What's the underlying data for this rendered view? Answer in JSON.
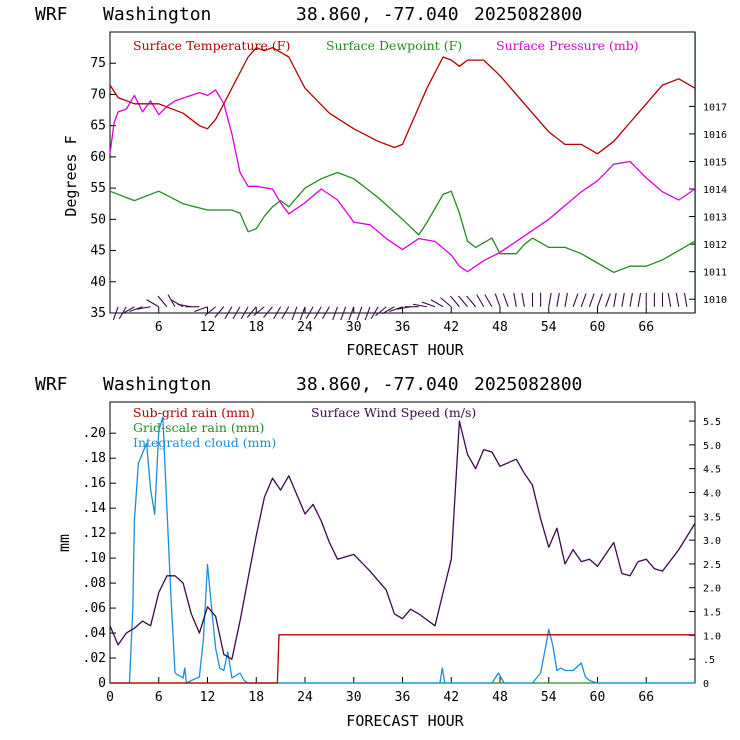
{
  "colors": {
    "temperature": "#b30000",
    "dewpoint": "#228b22",
    "pressure": "#dd00dd",
    "rain_subgrid": "#b30000",
    "rain_gridscale": "#228b22",
    "cloud": "#1a8fd8",
    "wind": "#3a0a4a",
    "barb": "#3a0a4a"
  },
  "header": {
    "model": "WRF",
    "location": "Washington",
    "coords": "38.860, -77.040",
    "run": "2025082800"
  },
  "chart_data": [
    {
      "type": "line",
      "xlabel": "FORECAST HOUR",
      "ylabel": "Degrees F",
      "xlim": [
        0,
        72
      ],
      "ylim": [
        35,
        80
      ],
      "y2lim": [
        1009.5,
        1019.7
      ],
      "xticks": [
        "6",
        "12",
        "18",
        "24",
        "30",
        "36",
        "42",
        "48",
        "54",
        "60",
        "66"
      ],
      "yticks": [
        "35",
        "40",
        "45",
        "50",
        "55",
        "60",
        "65",
        "70",
        "75"
      ],
      "y2ticks": [
        "1010",
        "1011",
        "1012",
        "1013",
        "1014",
        "1015",
        "1016",
        "1017"
      ],
      "legend_placement": "top",
      "series": [
        {
          "name": "Surface Temperature (F)",
          "axis": "left",
          "x": [
            0,
            1,
            3,
            6,
            9,
            11,
            12,
            13,
            15,
            17,
            18,
            19,
            20,
            22,
            24,
            27,
            30,
            33,
            35,
            36,
            37,
            39,
            41,
            42,
            43,
            44,
            46,
            48,
            50,
            52,
            54,
            56,
            58,
            60,
            62,
            64,
            66,
            68,
            70,
            72
          ],
          "y": [
            71.5,
            69.5,
            68.5,
            68.5,
            67,
            65,
            64.5,
            66,
            71,
            76,
            77.5,
            77,
            77.5,
            76,
            71,
            67,
            64.5,
            62.5,
            61.5,
            62,
            65,
            71,
            76,
            75.5,
            74.5,
            75.5,
            75.5,
            73,
            70,
            67,
            64,
            62,
            62,
            60.5,
            62.5,
            65.5,
            68.5,
            71.5,
            72.5,
            71
          ]
        },
        {
          "name": "Surface Dewpoint (F)",
          "axis": "left",
          "x": [
            0,
            3,
            6,
            9,
            12,
            15,
            16,
            17,
            18,
            19,
            20,
            21,
            22,
            24,
            26,
            28,
            30,
            33,
            36,
            38,
            39,
            41,
            42,
            43,
            44,
            45,
            47,
            48,
            50,
            51,
            52,
            54,
            56,
            58,
            60,
            62,
            64,
            66,
            68,
            72
          ],
          "y": [
            54.5,
            53,
            54.5,
            52.5,
            51.5,
            51.5,
            51,
            48,
            48.5,
            50.5,
            52,
            53,
            52,
            55,
            56.5,
            57.5,
            56.5,
            53.5,
            50,
            47.5,
            49.5,
            54,
            54.5,
            51,
            46.5,
            45.5,
            47,
            44.5,
            44.5,
            46,
            47,
            45.5,
            45.5,
            44.5,
            43,
            41.5,
            42.5,
            42.5,
            43.5,
            46.5
          ]
        },
        {
          "name": "Surface Pressure (mb)",
          "axis": "right",
          "x": [
            0,
            0.5,
            1,
            2,
            3,
            4,
            5,
            6,
            7,
            8,
            9,
            10,
            11,
            12,
            13,
            14,
            15,
            16,
            17,
            18,
            20,
            21,
            22,
            24,
            26,
            28,
            30,
            32,
            34,
            36,
            38,
            40,
            42,
            43,
            44,
            46,
            48,
            50,
            52,
            54,
            56,
            58,
            60,
            62,
            64,
            66,
            68,
            70,
            72
          ],
          "y": [
            1015.3,
            1016.4,
            1016.8,
            1016.9,
            1017.4,
            1016.8,
            1017.2,
            1016.7,
            1017.0,
            1017.2,
            1017.3,
            1017.4,
            1017.5,
            1017.4,
            1017.6,
            1017.1,
            1016.0,
            1014.6,
            1014.1,
            1014.1,
            1014.0,
            1013.5,
            1013.1,
            1013.5,
            1014.0,
            1013.6,
            1012.8,
            1012.7,
            1012.2,
            1011.8,
            1012.2,
            1012.1,
            1011.6,
            1011.2,
            1011.0,
            1011.4,
            1011.7,
            1012.1,
            1012.5,
            1012.9,
            1013.4,
            1013.9,
            1014.3,
            1014.9,
            1015.0,
            1014.4,
            1013.9,
            1013.6,
            1014.0
          ]
        }
      ],
      "wind_barbs": {
        "x": [
          1,
          2,
          3,
          4,
          5,
          6,
          7,
          8,
          9,
          10,
          11,
          12,
          13,
          14,
          15,
          16,
          17,
          18,
          19,
          20,
          21,
          22,
          23,
          24,
          25,
          26,
          27,
          28,
          29,
          30,
          31,
          32,
          33,
          34,
          35,
          36,
          37,
          38,
          39,
          40,
          41,
          42,
          43,
          44,
          45,
          46,
          47,
          48,
          49,
          50,
          51,
          52,
          53,
          54,
          55,
          56,
          57,
          58,
          59,
          60,
          61,
          62,
          63,
          64,
          65,
          66,
          67,
          68,
          69,
          70,
          71
        ],
        "direction_deg": [
          200,
          210,
          240,
          250,
          260,
          300,
          320,
          330,
          300,
          280,
          270,
          250,
          230,
          220,
          210,
          210,
          210,
          220,
          230,
          220,
          210,
          210,
          200,
          200,
          210,
          210,
          210,
          200,
          200,
          200,
          200,
          200,
          210,
          230,
          240,
          250,
          260,
          270,
          280,
          290,
          300,
          310,
          320,
          320,
          320,
          330,
          330,
          340,
          340,
          350,
          350,
          0,
          0,
          10,
          10,
          10,
          20,
          20,
          20,
          20,
          20,
          10,
          10,
          10,
          10,
          0,
          0,
          0,
          350,
          350,
          350
        ]
      }
    },
    {
      "type": "line",
      "xlabel": "FORECAST HOUR",
      "ylabel": "mm",
      "xlim": [
        0,
        72
      ],
      "ylim": [
        0,
        0.225
      ],
      "y2lim": [
        0,
        5.9
      ],
      "xticks": [
        "0",
        "6",
        "12",
        "18",
        "24",
        "30",
        "36",
        "42",
        "48",
        "54",
        "60",
        "66"
      ],
      "yticks": [
        "0",
        ".02",
        ".04",
        ".06",
        ".08",
        ".10",
        ".12",
        ".14",
        ".16",
        ".18",
        ".20"
      ],
      "y2ticks": [
        "0",
        ".5",
        "1.0",
        "1.5",
        "2.0",
        "2.5",
        "3.0",
        "3.5",
        "4.0",
        "4.5",
        "5.0",
        "5.5"
      ],
      "legend_placement": "top-left",
      "series": [
        {
          "name": "Sub-grid rain (mm)",
          "axis": "left",
          "x": [
            0,
            20.6,
            20.8,
            72
          ],
          "y": [
            0,
            0,
            0.0386,
            0.0386
          ]
        },
        {
          "name": "Grid-scale rain (mm)",
          "axis": "left",
          "x": [
            0,
            72
          ],
          "y": [
            0,
            0
          ]
        },
        {
          "name": "Integrated cloud (mm)",
          "axis": "left",
          "x": [
            0,
            2.4,
            2.8,
            3,
            3.5,
            4.5,
            5,
            5.5,
            6,
            6.5,
            7,
            7.5,
            8,
            9,
            9.2,
            9.4,
            10,
            11,
            11.5,
            12,
            12.5,
            13,
            13.5,
            14,
            14.5,
            15,
            16,
            16.5,
            17,
            40.6,
            40.9,
            41.2,
            47,
            47.8,
            48.5,
            52,
            53,
            53.5,
            54,
            54.5,
            55,
            55.5,
            56,
            57,
            58,
            58.5,
            59,
            60,
            72
          ],
          "y": [
            0,
            0,
            0.06,
            0.13,
            0.176,
            0.192,
            0.155,
            0.135,
            0.202,
            0.213,
            0.14,
            0.07,
            0.008,
            0.004,
            0.012,
            0,
            0.002,
            0.005,
            0.035,
            0.095,
            0.06,
            0.028,
            0.012,
            0.01,
            0.025,
            0.004,
            0.008,
            0.002,
            0,
            0,
            0.012,
            0,
            0,
            0.008,
            0,
            0,
            0.008,
            0.025,
            0.043,
            0.03,
            0.01,
            0.012,
            0.01,
            0.01,
            0.016,
            0.005,
            0.002,
            0,
            0
          ]
        },
        {
          "name": "Surface Wind Speed (m/s)",
          "axis": "right",
          "x": [
            0,
            1,
            2,
            3,
            4,
            5,
            6,
            7,
            8,
            9,
            10,
            11,
            12,
            13,
            14,
            15,
            16,
            17,
            18,
            19,
            20,
            21,
            22,
            23,
            24,
            25,
            26,
            27,
            28,
            30,
            32,
            34,
            35,
            36,
            37,
            38,
            40,
            41,
            42,
            43,
            44,
            45,
            46,
            47,
            48,
            50,
            51,
            52,
            53,
            54,
            55,
            56,
            57,
            58,
            59,
            60,
            61,
            62,
            63,
            64,
            65,
            66,
            67,
            68,
            70,
            72
          ],
          "y": [
            1.2,
            0.8,
            1.05,
            1.15,
            1.3,
            1.2,
            1.9,
            2.25,
            2.25,
            2.1,
            1.45,
            1.05,
            1.6,
            1.4,
            0.6,
            0.5,
            1.3,
            2.2,
            3.1,
            3.9,
            4.3,
            4.05,
            4.35,
            3.95,
            3.55,
            3.75,
            3.4,
            2.95,
            2.6,
            2.7,
            2.35,
            1.95,
            1.45,
            1.35,
            1.55,
            1.45,
            1.2,
            1.9,
            2.6,
            5.5,
            4.8,
            4.5,
            4.9,
            4.85,
            4.55,
            4.7,
            4.4,
            4.15,
            3.45,
            2.85,
            3.25,
            2.5,
            2.8,
            2.55,
            2.6,
            2.45,
            2.7,
            2.95,
            2.3,
            2.25,
            2.55,
            2.6,
            2.4,
            2.35,
            2.8,
            3.35
          ]
        }
      ]
    }
  ]
}
